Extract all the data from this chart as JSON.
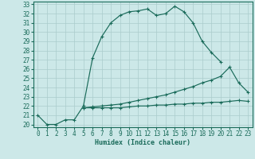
{
  "xlabel": "Humidex (Indice chaleur)",
  "bg_color": "#cce8e8",
  "grid_color": "#aacccc",
  "line_color": "#1a6b5a",
  "xlim": [
    -0.5,
    23.5
  ],
  "ylim": [
    19.7,
    33.3
  ],
  "xticks": [
    0,
    1,
    2,
    3,
    4,
    5,
    6,
    7,
    8,
    9,
    10,
    11,
    12,
    13,
    14,
    15,
    16,
    17,
    18,
    19,
    20,
    21,
    22,
    23
  ],
  "yticks": [
    20,
    21,
    22,
    23,
    24,
    25,
    26,
    27,
    28,
    29,
    30,
    31,
    32,
    33
  ],
  "line1_x": [
    0,
    1,
    2,
    3,
    4,
    5,
    6,
    7,
    8,
    9,
    10,
    11,
    12,
    13,
    14,
    15,
    16,
    17,
    18,
    19,
    20
  ],
  "line1_y": [
    21.0,
    20.0,
    20.0,
    20.5,
    20.5,
    22.0,
    27.2,
    29.5,
    31.0,
    31.8,
    32.2,
    32.3,
    32.5,
    31.8,
    32.0,
    32.8,
    32.2,
    31.0,
    29.0,
    27.8,
    26.8
  ],
  "line2_x": [
    5,
    6,
    7,
    8,
    9,
    10,
    11,
    12,
    13,
    14,
    15,
    16,
    17,
    18,
    19,
    20,
    21,
    22,
    23
  ],
  "line2_y": [
    21.8,
    21.9,
    22.0,
    22.1,
    22.2,
    22.4,
    22.6,
    22.8,
    23.0,
    23.2,
    23.5,
    23.8,
    24.1,
    24.5,
    24.8,
    25.2,
    26.2,
    24.5,
    23.5
  ],
  "line3_x": [
    5,
    6,
    7,
    8,
    9,
    10,
    11,
    12,
    13,
    14,
    15,
    16,
    17,
    18,
    19,
    20,
    21,
    22,
    23
  ],
  "line3_y": [
    21.8,
    21.8,
    21.8,
    21.8,
    21.8,
    21.9,
    22.0,
    22.0,
    22.1,
    22.1,
    22.2,
    22.2,
    22.3,
    22.3,
    22.4,
    22.4,
    22.5,
    22.6,
    22.5
  ],
  "xlabel_fontsize": 6,
  "tick_fontsize": 5.5
}
